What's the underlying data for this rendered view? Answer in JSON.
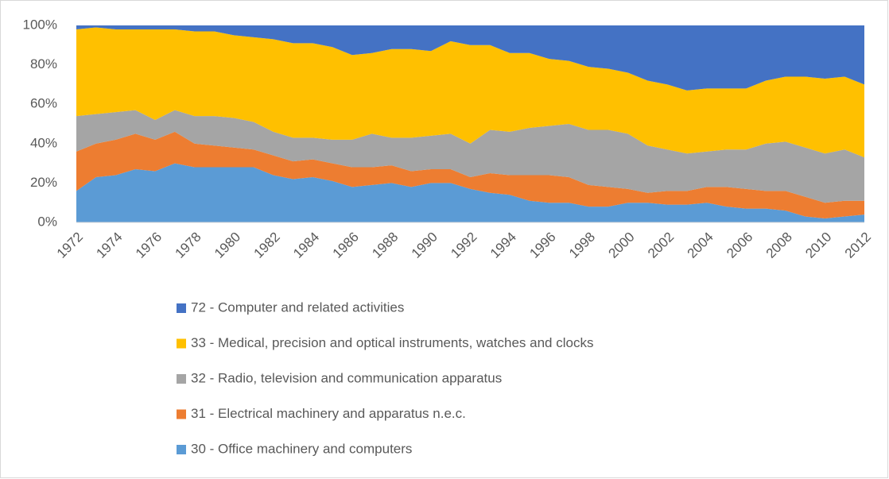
{
  "chart_data": {
    "type": "stacked_area_percent",
    "categories": [
      "1972",
      null,
      "1974",
      null,
      "1976",
      null,
      "1978",
      null,
      "1980",
      null,
      "1982",
      null,
      "1984",
      null,
      "1986",
      null,
      "1988",
      null,
      "1990",
      null,
      "1992",
      null,
      "1994",
      null,
      "1996",
      null,
      "1998",
      null,
      "2000",
      null,
      "2002",
      null,
      "2004",
      null,
      "2006",
      null,
      "2008",
      null,
      "2010",
      null,
      "2012"
    ],
    "series": [
      {
        "name": "30 - Office machinery and computers",
        "color": "#5b9bd5",
        "values": [
          16,
          23,
          24,
          27,
          26,
          30,
          28,
          28,
          28,
          28,
          24,
          22,
          23,
          21,
          18,
          19,
          20,
          18,
          20,
          20,
          17,
          15,
          14,
          11,
          10,
          10,
          8,
          8,
          10,
          10,
          9,
          9,
          10,
          8,
          7,
          7,
          6,
          3,
          2,
          3,
          4
        ]
      },
      {
        "name": "31 - Electrical machinery and apparatus n.e.c.",
        "color": "#ed7d31",
        "values": [
          20,
          17,
          18,
          18,
          16,
          16,
          12,
          11,
          10,
          9,
          10,
          9,
          9,
          9,
          10,
          9,
          9,
          8,
          7,
          7,
          6,
          10,
          10,
          13,
          14,
          13,
          11,
          10,
          7,
          5,
          7,
          7,
          8,
          10,
          10,
          9,
          10,
          10,
          8,
          8,
          7
        ]
      },
      {
        "name": "32 - Radio, television and communication apparatus",
        "color": "#a5a5a5",
        "values": [
          18,
          15,
          14,
          12,
          10,
          11,
          14,
          15,
          15,
          14,
          12,
          12,
          11,
          12,
          14,
          17,
          14,
          17,
          17,
          18,
          17,
          22,
          22,
          24,
          25,
          27,
          28,
          29,
          28,
          24,
          21,
          19,
          18,
          19,
          20,
          24,
          25,
          25,
          25,
          26,
          22
        ]
      },
      {
        "name": "33 - Medical, precision and optical instruments, watches and clocks",
        "color": "#ffc000",
        "values": [
          44,
          44,
          42,
          41,
          46,
          41,
          43,
          43,
          42,
          43,
          47,
          48,
          48,
          47,
          43,
          41,
          45,
          45,
          43,
          47,
          50,
          43,
          40,
          38,
          34,
          32,
          32,
          31,
          31,
          33,
          33,
          32,
          32,
          31,
          31,
          32,
          33,
          36,
          38,
          37,
          37
        ]
      },
      {
        "name": "72 - Computer and related activities",
        "color": "#4472c4",
        "values": [
          2,
          1,
          2,
          2,
          2,
          2,
          3,
          3,
          5,
          6,
          7,
          9,
          9,
          11,
          15,
          14,
          12,
          12,
          13,
          8,
          10,
          10,
          14,
          14,
          17,
          18,
          21,
          22,
          24,
          28,
          30,
          33,
          32,
          32,
          32,
          28,
          26,
          26,
          27,
          26,
          30
        ]
      }
    ],
    "ylim": [
      0,
      100
    ],
    "yticks": [
      {
        "value": 0,
        "label": "0%"
      },
      {
        "value": 20,
        "label": "20%"
      },
      {
        "value": 40,
        "label": "40%"
      },
      {
        "value": 60,
        "label": "60%"
      },
      {
        "value": 80,
        "label": "80%"
      },
      {
        "value": 100,
        "label": "100%"
      }
    ],
    "grid": false,
    "legend": "bottom"
  }
}
